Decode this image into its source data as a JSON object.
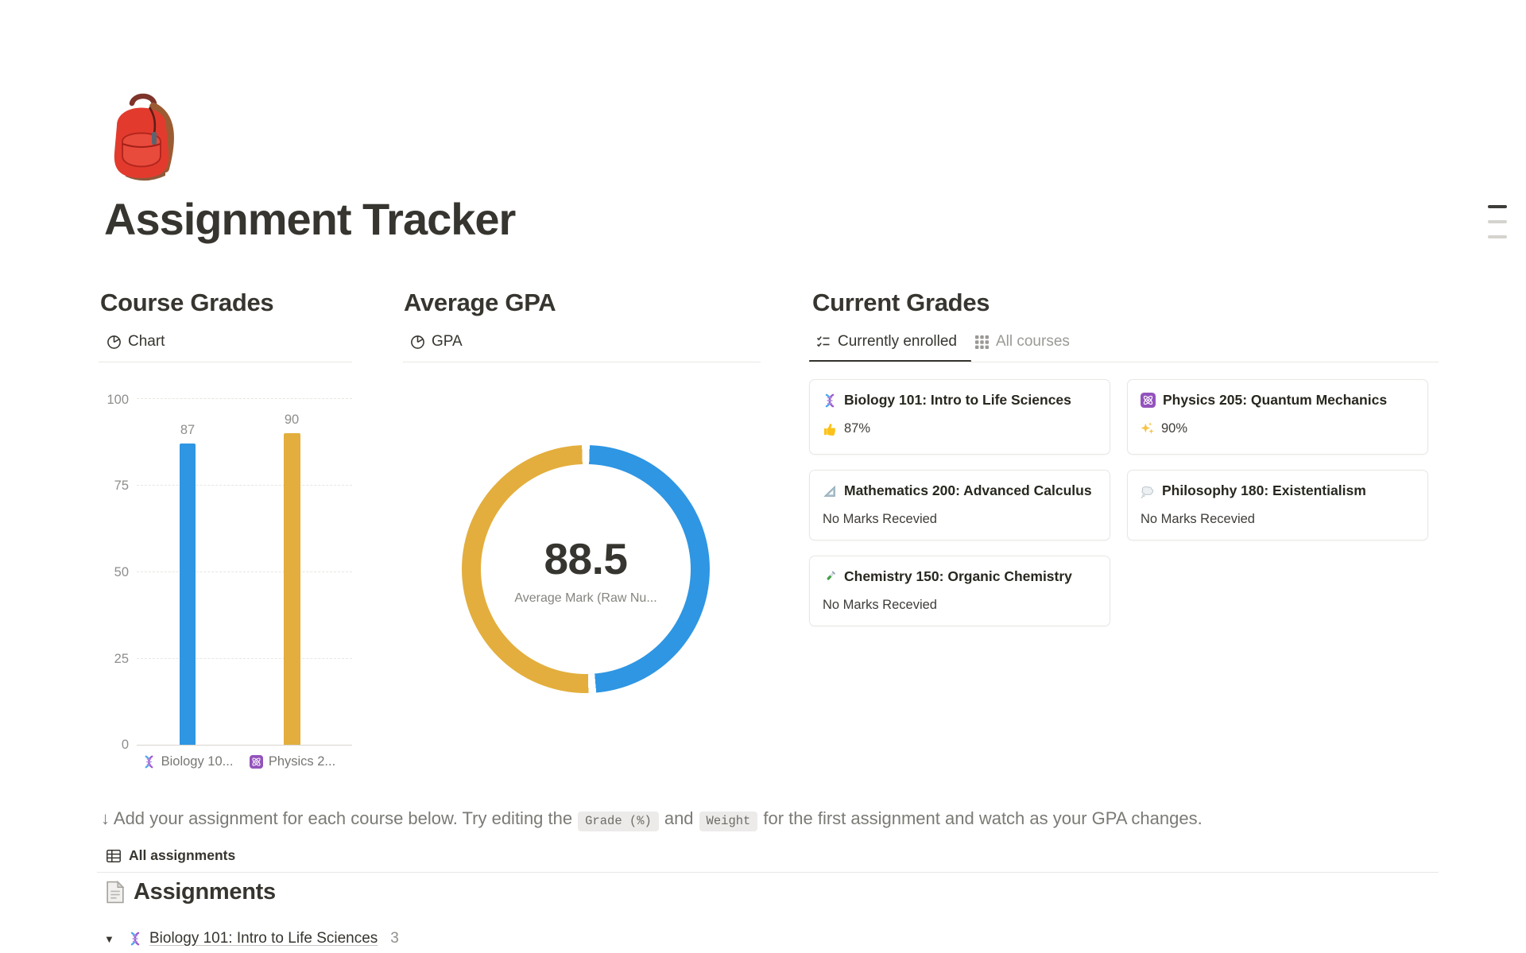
{
  "page": {
    "icon_name": "backpack-emoji",
    "icon_char": "🎒",
    "title": "Assignment Tracker"
  },
  "sections": {
    "course_grades": {
      "title": "Course Grades",
      "view_tab": "Chart"
    },
    "average_gpa": {
      "title": "Average GPA",
      "view_tab": "GPA",
      "value": "88.5",
      "value_label": "Average Mark (Raw Nu..."
    },
    "current_grades": {
      "title": "Current Grades",
      "tabs": [
        {
          "label": "Currently enrolled"
        },
        {
          "label": "All courses"
        }
      ],
      "cards": [
        {
          "icon_name": "dna-emoji",
          "icon_char": "🧬",
          "title": "Biology 101: Intro to Life Sciences",
          "status_icon_name": "thumbs-up-emoji",
          "status_icon_char": "👍",
          "status": "87%"
        },
        {
          "icon_name": "atom-emoji",
          "icon_char": "⚛️",
          "title": "Physics 205: Quantum Mechanics",
          "status_icon_name": "sparkles-emoji",
          "status_icon_char": "✨",
          "status": "90%"
        },
        {
          "icon_name": "triangle-ruler-emoji",
          "icon_char": "📐",
          "title": "Mathematics 200: Advanced Calculus",
          "status_icon_name": "",
          "status_icon_char": "",
          "status": "No Marks Recevied"
        },
        {
          "icon_name": "thought-balloon-emoji",
          "icon_char": "💭",
          "title": "Philosophy 180: Existentialism",
          "status_icon_name": "",
          "status_icon_char": "",
          "status": "No Marks Recevied"
        },
        {
          "icon_name": "test-tube-emoji",
          "icon_char": "🧪",
          "title": "Chemistry 150: Organic Chemistry",
          "status_icon_name": "",
          "status_icon_char": "",
          "status": "No Marks Recevied"
        }
      ]
    }
  },
  "note": {
    "parts": [
      "↓ Add your assignment for each course below. Try editing the",
      "Grade (%)",
      "and",
      "Weight",
      "for the first assignment and watch as your GPA changes."
    ]
  },
  "assignments": {
    "view_tab": "All assignments",
    "icon_name": "page-document-emoji",
    "icon_char": "📄",
    "heading": "Assignments",
    "group": {
      "caret": "▼",
      "icon_name": "dna-emoji",
      "icon_char": "🧬",
      "title": "Biology 101: Intro to Life Sciences",
      "count": "3"
    }
  },
  "chart_data": [
    {
      "type": "bar",
      "title": "Course Grades",
      "view": "Chart",
      "categories": [
        "Biology 10...",
        "Physics 2..."
      ],
      "category_icons": [
        "dna-emoji",
        "atom-emoji"
      ],
      "values": [
        87,
        90
      ],
      "colors": [
        "#2E96E3",
        "#E3AE3D"
      ],
      "ylim": [
        0,
        100
      ],
      "yticks": [
        100,
        75,
        50,
        25,
        0
      ],
      "grid": "horizontal-dashed",
      "legend": "none"
    },
    {
      "type": "pie",
      "subtype": "donut",
      "title": "Average GPA",
      "view": "GPA",
      "segments": [
        {
          "name": "Biology 101: Intro to Life Sciences",
          "value": 87,
          "color": "#2E96E3"
        },
        {
          "name": "Physics 205: Quantum Mechanics",
          "value": 90,
          "color": "#E3AE3D"
        }
      ],
      "center_value": "88.5",
      "center_label": "Average Mark (Raw Nu..."
    }
  ],
  "colors": {
    "blue": "#2E96E3",
    "yellow": "#E3AE3D",
    "text": "#37352F",
    "muted": "#8F8E8B",
    "border": "#E9E8E6"
  }
}
